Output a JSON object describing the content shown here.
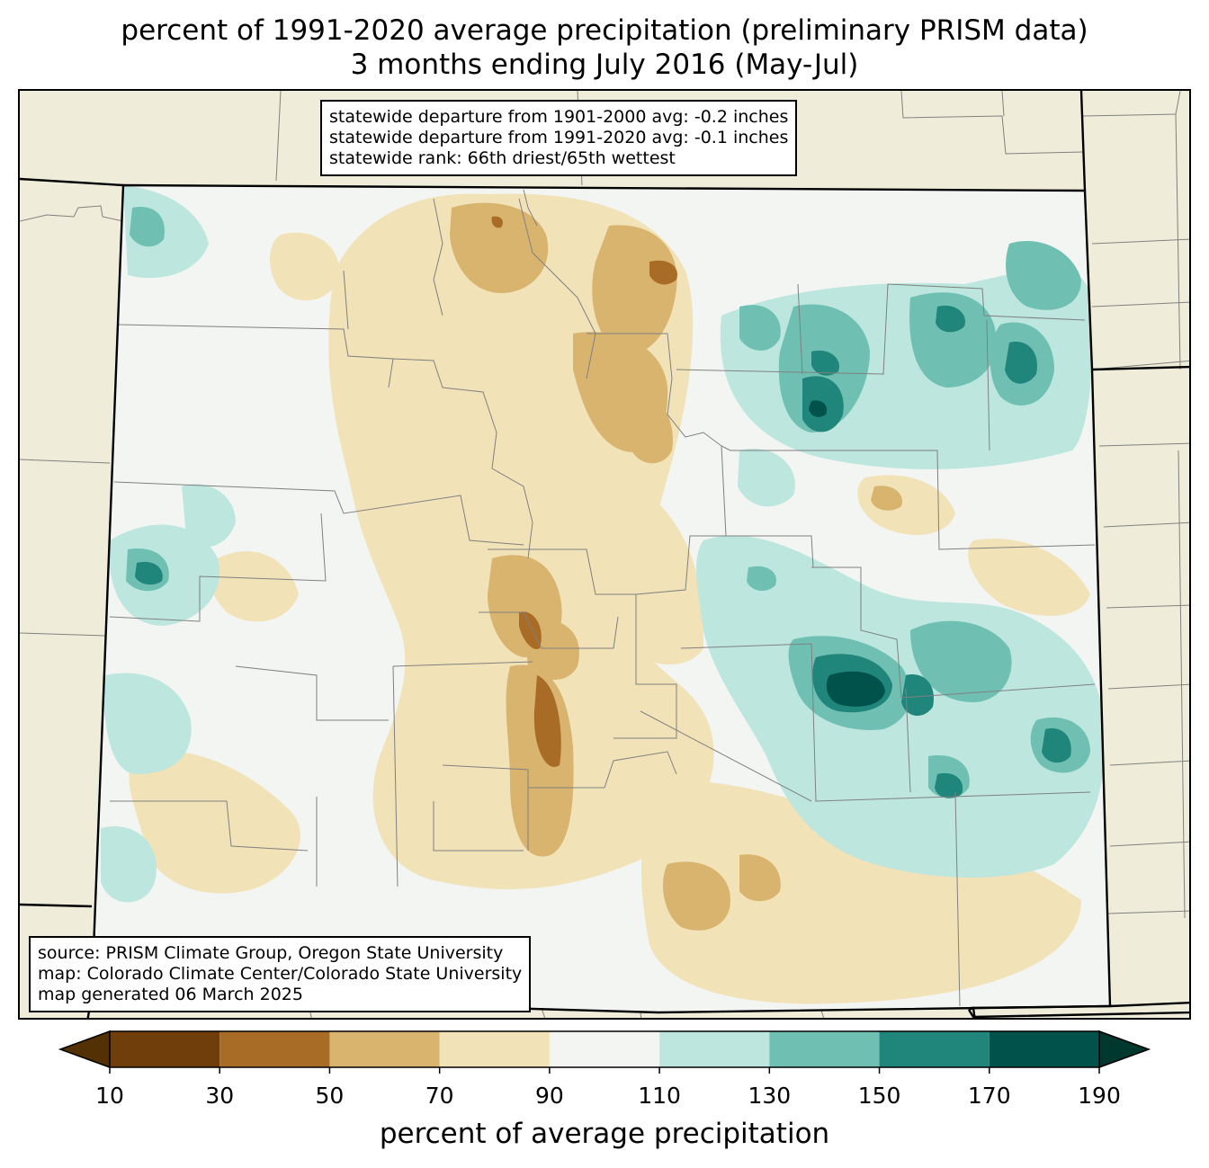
{
  "title": {
    "line1": "percent of 1991-2020 average precipitation (preliminary PRISM data)",
    "line2": "3 months ending July 2016 (May-Jul)"
  },
  "stats": {
    "line1": "statewide departure from 1901-2000 avg: -0.2 inches",
    "line2": "statewide departure from 1991-2020 avg: -0.1 inches",
    "line3": "statewide rank: 66th driest/65th wettest"
  },
  "credits": {
    "line1": "source: PRISM Climate Group, Oregon State University",
    "line2": "map: Colorado Climate Center/Colorado State University",
    "line3": "map generated 06 March 2025"
  },
  "colorbar": {
    "title": "percent of average precipitation",
    "ticks": [
      "10",
      "30",
      "50",
      "70",
      "90",
      "110",
      "130",
      "150",
      "170",
      "190"
    ],
    "under_color": "#543005",
    "over_color": "#00382f",
    "bins": [
      {
        "from": 10,
        "to": 30,
        "color": "#703e0a"
      },
      {
        "from": 30,
        "to": 50,
        "color": "#a96c26"
      },
      {
        "from": 50,
        "to": 70,
        "color": "#d8b46f"
      },
      {
        "from": 70,
        "to": 90,
        "color": "#f1e2b8"
      },
      {
        "from": 90,
        "to": 110,
        "color": "#f3f5f3"
      },
      {
        "from": 110,
        "to": 130,
        "color": "#bde6df"
      },
      {
        "from": 130,
        "to": 150,
        "color": "#6fc0b2"
      },
      {
        "from": 150,
        "to": 170,
        "color": "#20857a"
      },
      {
        "from": 170,
        "to": 190,
        "color": "#01524a"
      }
    ]
  },
  "colors": {
    "background_land": "#efedd9",
    "state_border": "#000000",
    "county_line": "#808080"
  }
}
